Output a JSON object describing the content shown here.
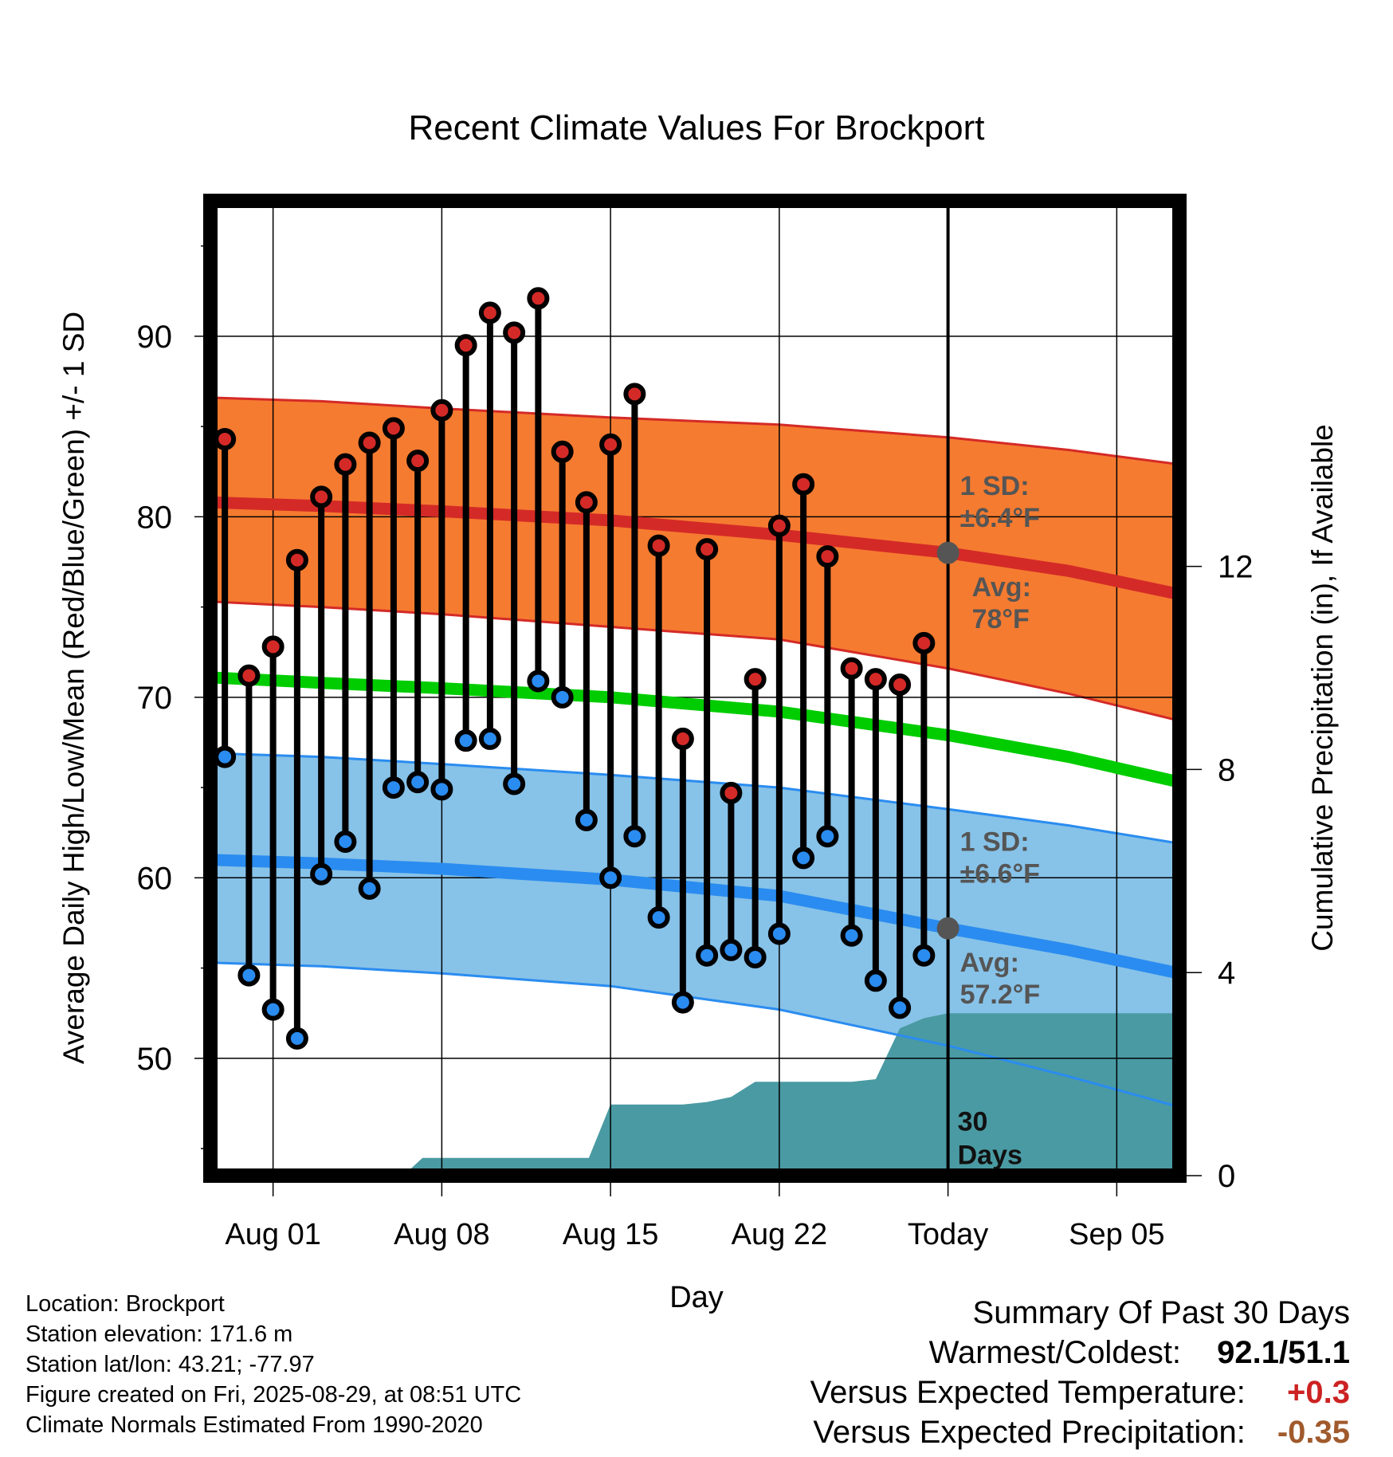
{
  "chart_data": {
    "type": "line",
    "title": "Recent Climate Values For Brockport",
    "xlabel": "Day",
    "ylabel": "Average Daily High/Low/Mean (Red/Blue/Green) +/- 1 SD",
    "y2label": "Cumulative Precipitation (in), If Available",
    "ylim": [
      43.5,
      97.5
    ],
    "y_ticks": [
      50,
      60,
      70,
      80,
      90
    ],
    "y2lim": [
      0,
      19.2
    ],
    "y2_ticks": [
      0,
      4,
      8,
      12
    ],
    "x_tick_labels": [
      "Aug 01",
      "Aug 08",
      "Aug 15",
      "Aug 22",
      "Today",
      "Sep 05"
    ],
    "x_tick_days": [
      1,
      8,
      15,
      22,
      29,
      36
    ],
    "xlim": [
      -1.6,
      38.6
    ],
    "today_day": 29,
    "days_window_label": [
      "30",
      "Days"
    ],
    "observed_high": [
      84.3,
      71.2,
      72.8,
      77.6,
      81.1,
      82.9,
      84.1,
      84.9,
      83.1,
      85.9,
      89.5,
      91.3,
      90.2,
      92.1,
      83.6,
      80.8,
      84.0,
      86.8,
      78.4,
      67.7,
      78.2,
      64.7,
      71.0,
      79.5,
      81.8,
      77.8,
      71.6,
      71.0,
      70.7,
      73.0
    ],
    "observed_low": [
      66.7,
      54.6,
      52.7,
      51.1,
      60.2,
      62.0,
      59.4,
      65.0,
      65.3,
      64.9,
      67.6,
      67.7,
      65.2,
      70.9,
      70.0,
      63.2,
      60.0,
      62.3,
      57.8,
      53.1,
      55.7,
      56.0,
      55.6,
      56.9,
      61.1,
      62.3,
      56.8,
      54.3,
      52.8,
      55.7
    ],
    "observed_start_day": -1,
    "series": [
      {
        "name": "Avg High",
        "x": [
          -1.6,
          3,
          8,
          15,
          22,
          29,
          34,
          38.6
        ],
        "values": [
          80.8,
          80.6,
          80.3,
          79.8,
          79.0,
          78.0,
          77.0,
          75.7
        ]
      },
      {
        "name": "High +1 SD",
        "x": [
          -1.6,
          3,
          8,
          15,
          22,
          29,
          34,
          38.6
        ],
        "values": [
          86.6,
          86.4,
          86.0,
          85.5,
          85.1,
          84.4,
          83.7,
          82.9
        ]
      },
      {
        "name": "High -1 SD",
        "x": [
          -1.6,
          3,
          8,
          15,
          22,
          29,
          34,
          38.6
        ],
        "values": [
          75.3,
          75.0,
          74.6,
          73.9,
          73.2,
          71.6,
          70.2,
          68.7
        ]
      },
      {
        "name": "Avg Mean",
        "x": [
          -1.6,
          3,
          8,
          15,
          22,
          29,
          34,
          38.6
        ],
        "values": [
          71.1,
          70.8,
          70.5,
          70.0,
          69.2,
          67.9,
          66.7,
          65.3
        ]
      },
      {
        "name": "Avg Low",
        "x": [
          -1.6,
          3,
          8,
          15,
          22,
          29,
          34,
          38.6
        ],
        "values": [
          61.0,
          60.8,
          60.5,
          59.9,
          59.0,
          57.2,
          56.0,
          54.7
        ]
      },
      {
        "name": "Low +1 SD",
        "x": [
          -1.6,
          3,
          8,
          15,
          22,
          29,
          34,
          38.6
        ],
        "values": [
          66.9,
          66.7,
          66.3,
          65.7,
          65.0,
          63.8,
          62.9,
          61.9
        ]
      },
      {
        "name": "Low -1 SD",
        "x": [
          -1.6,
          3,
          8,
          15,
          22,
          29,
          34,
          38.6
        ],
        "values": [
          55.3,
          55.1,
          54.7,
          54.0,
          52.7,
          50.7,
          49.0,
          47.3
        ]
      }
    ],
    "precip_cumulative": {
      "x": [
        -1.6,
        6.4,
        7.2,
        14.1,
        15.0,
        16.0,
        18.0,
        19.0,
        20.0,
        21.0,
        22.0,
        24.0,
        25.0,
        26.0,
        27.0,
        28.0,
        29.0,
        38.6
      ],
      "values": [
        0,
        0,
        0.35,
        0.35,
        1.4,
        1.4,
        1.4,
        1.45,
        1.55,
        1.85,
        1.85,
        1.85,
        1.85,
        1.9,
        2.9,
        3.1,
        3.2,
        3.2
      ]
    },
    "annotations": {
      "high_sd": [
        "1 SD:",
        "±6.4°F"
      ],
      "high_avg": [
        "Avg:",
        "78°F"
      ],
      "low_sd": [
        "1 SD:",
        "±6.6°F"
      ],
      "low_avg": [
        "Avg:",
        "57.2°F"
      ]
    },
    "grid": true,
    "colors": {
      "high_band": "#f57b30",
      "high_line": "#d42a27",
      "mean_line": "#00cc00",
      "low_band": "#87c2e8",
      "low_line": "#2a8cf0",
      "precip_area": "#4a9aa3",
      "annotation_text": "#555555",
      "high_marker": "#d42a27",
      "low_marker": "#2a8cf0"
    }
  },
  "info": {
    "location": "Location: Brockport",
    "elevation": "Station elevation: 171.6 m",
    "latlon": "Station lat/lon: 43.21; -77.97",
    "created": "Figure created on Fri, 2025-08-29, at 08:51 UTC",
    "normals": "Climate Normals Estimated From 1990-2020"
  },
  "summary": {
    "heading": "Summary Of Past 30 Days",
    "warmest_label": "Warmest/Coldest:",
    "warmest_value": "92.1/51.1",
    "temp_label": "Versus Expected Temperature:",
    "temp_value": "+0.3",
    "temp_color": "#cc2222",
    "precip_label": "Versus Expected Precipitation:",
    "precip_value": "-0.35",
    "precip_color": "#a05a2c"
  }
}
